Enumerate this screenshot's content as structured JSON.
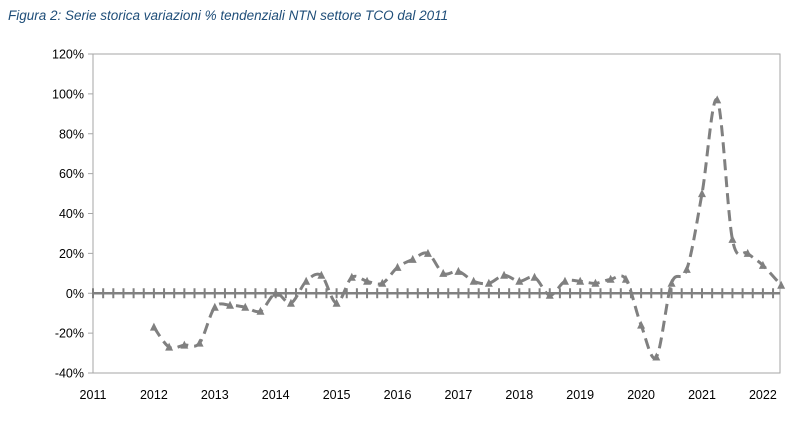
{
  "title": "Figura 2: Serie storica variazioni % tendenziali NTN settore TCO dal 2011",
  "chart_data": {
    "type": "line",
    "title": "Figura 2: Serie storica variazioni % tendenziali NTN settore TCO dal 2011",
    "xlabel": "",
    "ylabel": "",
    "xlim": [
      2011,
      2022.3
    ],
    "ylim": [
      -40,
      120
    ],
    "yticks": [
      -40,
      -20,
      0,
      20,
      40,
      60,
      80,
      100,
      120
    ],
    "ytick_labels": [
      "-40%",
      "-20%",
      "0%",
      "20%",
      "40%",
      "60%",
      "80%",
      "100%",
      "120%"
    ],
    "xticks": [
      2011,
      2012,
      2013,
      2014,
      2015,
      2016,
      2017,
      2018,
      2019,
      2020,
      2021,
      2022
    ],
    "xtick_labels": [
      "2011",
      "2012",
      "2013",
      "2014",
      "2015",
      "2016",
      "2017",
      "2018",
      "2019",
      "2020",
      "2021",
      "2022"
    ],
    "grid": false,
    "line_style": "dashed",
    "marker": "triangle",
    "series_color": "#808080",
    "zero_line_color": "#808080",
    "series": [
      {
        "x": [
          2012.0,
          2012.25,
          2012.5,
          2012.75,
          2013.0,
          2013.25,
          2013.5,
          2013.75,
          2014.0,
          2014.25,
          2014.5,
          2014.75,
          2015.0,
          2015.25,
          2015.5,
          2015.75,
          2016.0,
          2016.25,
          2016.5,
          2016.75,
          2017.0,
          2017.25,
          2017.5,
          2017.75,
          2018.0,
          2018.25,
          2018.5,
          2018.75,
          2019.0,
          2019.25,
          2019.5,
          2019.75,
          2020.0,
          2020.25,
          2020.5,
          2020.75,
          2021.0,
          2021.25,
          2021.5,
          2021.75,
          2022.0,
          2022.3
        ],
        "y": [
          -17,
          -27,
          -26,
          -25,
          -7,
          -6,
          -7,
          -9,
          0,
          -5,
          6,
          9,
          -5,
          8,
          6,
          5,
          13,
          17,
          20,
          10,
          11,
          6,
          5,
          9,
          6,
          8,
          -1,
          6,
          6,
          5,
          7,
          7,
          -16,
          -32,
          5,
          12,
          50,
          97,
          27,
          20,
          14,
          4
        ]
      }
    ]
  }
}
